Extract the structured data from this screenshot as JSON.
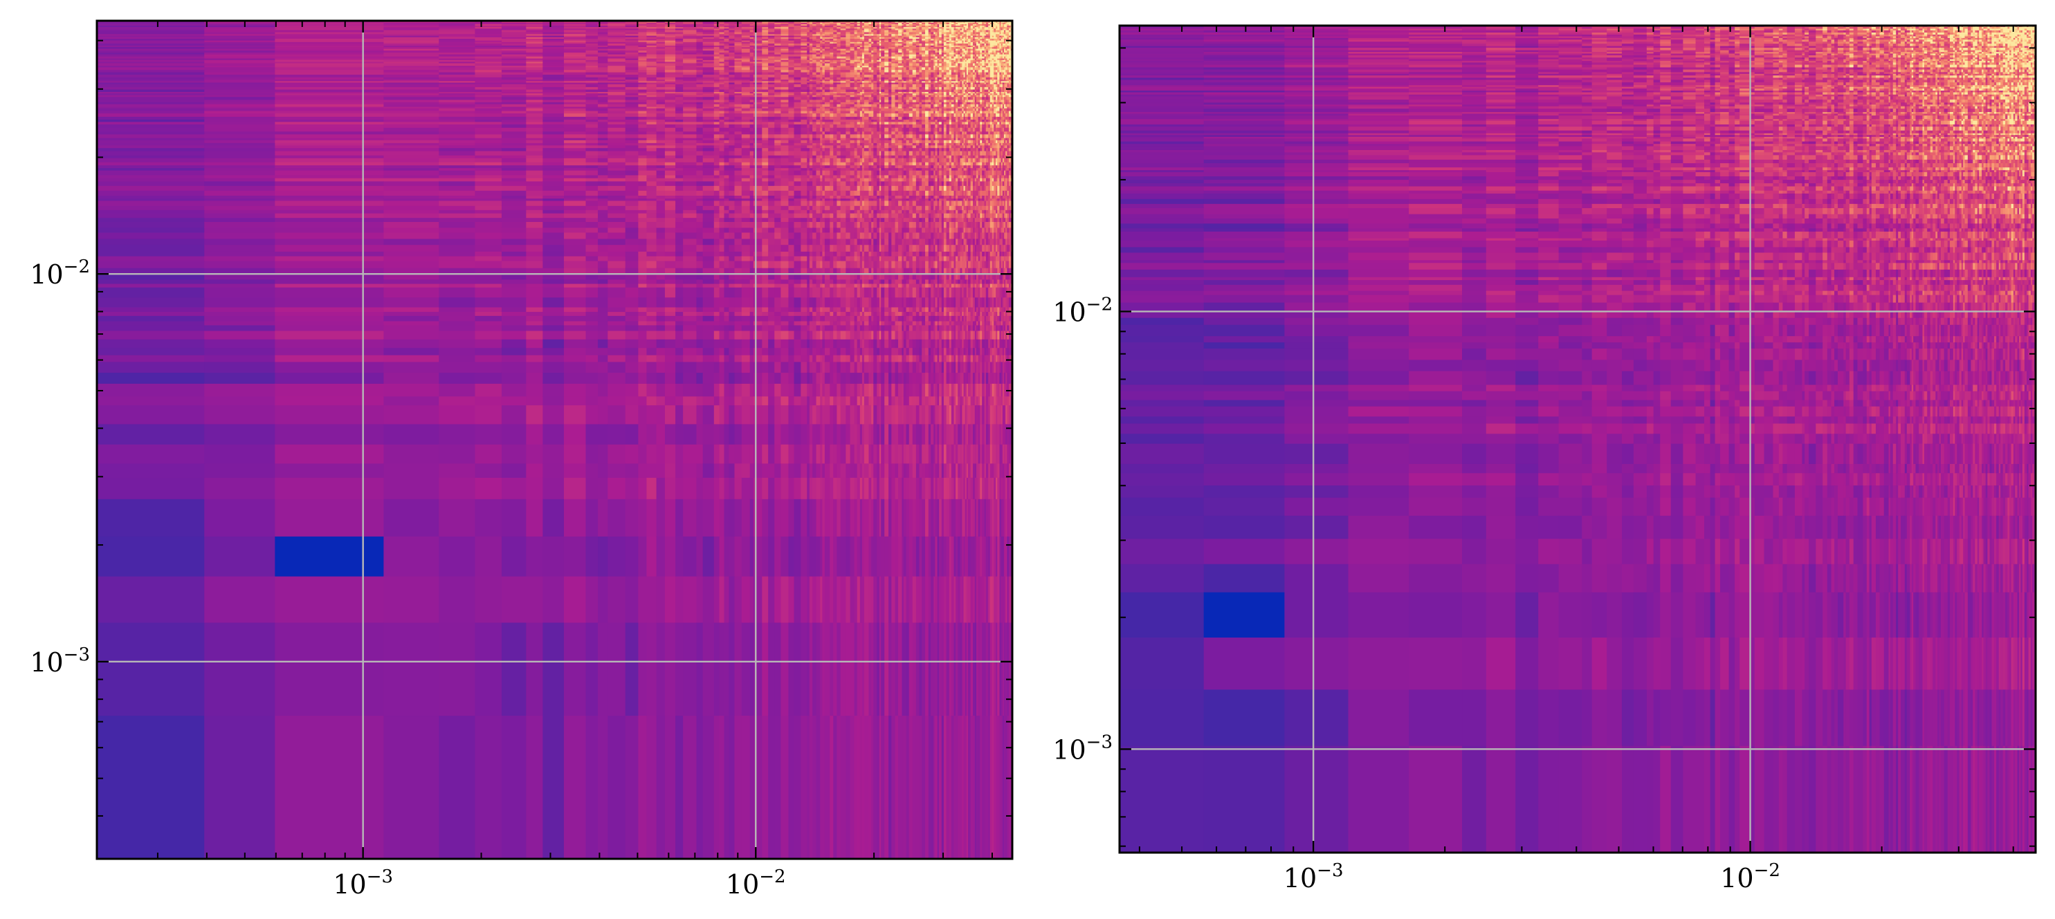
{
  "chart_data": [
    {
      "type": "heatmap",
      "title": "",
      "xlabel": "",
      "ylabel": "",
      "x_scale": "log",
      "y_scale": "log",
      "xlim": [
        0.00021,
        0.045
      ],
      "ylim": [
        0.00031,
        0.045
      ],
      "x_ticks": [
        {
          "value": 0.001,
          "label": "10",
          "exp": "−3"
        },
        {
          "value": 0.01,
          "label": "10",
          "exp": "−2"
        }
      ],
      "y_ticks": [
        {
          "value": 0.001,
          "label": "10",
          "exp": "−3"
        },
        {
          "value": 0.01,
          "label": "10",
          "exp": "−2"
        }
      ],
      "grid": true,
      "colormap": "magma-like (blue → purple → magenta → orange → yellow)",
      "trend": "values increase toward upper-right; lowest (deep blue) near x≈7e-4, y≈1.8e-3",
      "low_spot": {
        "x": [
          0.00056,
          0.00095
        ],
        "y": [
          0.00162,
          0.00208
        ]
      },
      "seed": 7
    },
    {
      "type": "heatmap",
      "title": "",
      "xlabel": "",
      "ylabel": "",
      "x_scale": "log",
      "y_scale": "log",
      "xlim": [
        0.00036,
        0.045
      ],
      "ylim": [
        0.00058,
        0.045
      ],
      "x_ticks": [
        {
          "value": 0.001,
          "label": "10",
          "exp": "−3"
        },
        {
          "value": 0.01,
          "label": "10",
          "exp": "−2"
        }
      ],
      "y_ticks": [
        {
          "value": 0.001,
          "label": "10",
          "exp": "−3"
        },
        {
          "value": 0.01,
          "label": "10",
          "exp": "−2"
        }
      ],
      "grid": true,
      "colormap": "magma-like (blue → purple → magenta → orange → yellow)",
      "trend": "values increase toward upper-right; lowest (deep blue) near x≈7e-4, y≈1.8e-3",
      "low_spot": {
        "x": [
          0.00054,
          0.00097
        ],
        "y": [
          0.0016,
          0.0021
        ]
      },
      "seed": 19
    }
  ]
}
